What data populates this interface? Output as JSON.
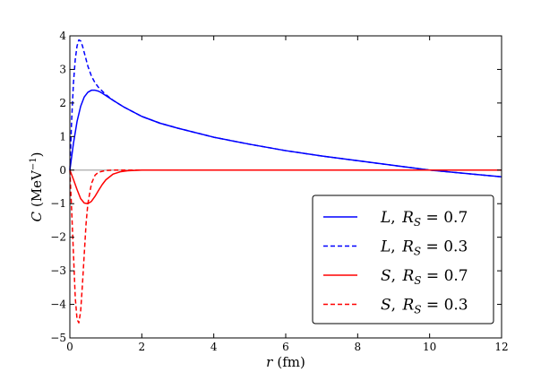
{
  "chart_data": {
    "type": "line",
    "title": "",
    "xlabel": {
      "var": "r",
      "unit": "(fm)"
    },
    "ylabel": {
      "var": "C",
      "unit": "(MeV",
      "exp": "−1",
      "close": ")"
    },
    "xlim": [
      0,
      12
    ],
    "ylim": [
      -5,
      4
    ],
    "xticks": [
      0,
      2,
      4,
      6,
      8,
      10,
      12
    ],
    "yticks": [
      -5,
      -4,
      -3,
      -2,
      -1,
      0,
      1,
      2,
      3,
      4
    ],
    "grid": false,
    "zero_line": true,
    "legend_position": "lower-right",
    "series": [
      {
        "legend": {
          "var": "L",
          "sep": ", ",
          "param": "R",
          "sub": "S",
          "eq": " = ",
          "val": "0.7"
        },
        "color": "#0000ff",
        "dash": "solid",
        "x": [
          0,
          0.1,
          0.2,
          0.3,
          0.4,
          0.5,
          0.6,
          0.7,
          0.8,
          0.9,
          1.0,
          1.2,
          1.5,
          2.0,
          2.5,
          3.0,
          4.0,
          5.0,
          6.0,
          7.0,
          8.0,
          9.0,
          10.0,
          11.0,
          12.0
        ],
        "y": [
          0,
          0.8,
          1.45,
          1.9,
          2.18,
          2.32,
          2.38,
          2.38,
          2.35,
          2.29,
          2.22,
          2.08,
          1.88,
          1.6,
          1.4,
          1.25,
          0.98,
          0.77,
          0.58,
          0.42,
          0.28,
          0.14,
          0.0,
          -0.1,
          -0.2
        ]
      },
      {
        "legend": {
          "var": "L",
          "sep": ", ",
          "param": "R",
          "sub": "S",
          "eq": " = ",
          "val": "0.3"
        },
        "color": "#0000ff",
        "dash": "dashed",
        "x": [
          0,
          0.05,
          0.1,
          0.15,
          0.2,
          0.25,
          0.3,
          0.35,
          0.4,
          0.5,
          0.6,
          0.7,
          0.8,
          1.0,
          1.2,
          1.5,
          2.0,
          2.5,
          3.0,
          4.0,
          5.0,
          6.0,
          7.0,
          8.0,
          9.0,
          10.0,
          11.0,
          12.0
        ],
        "y": [
          0,
          1.5,
          2.6,
          3.3,
          3.7,
          3.88,
          3.85,
          3.7,
          3.5,
          3.1,
          2.8,
          2.6,
          2.46,
          2.25,
          2.08,
          1.88,
          1.6,
          1.4,
          1.25,
          0.98,
          0.77,
          0.58,
          0.42,
          0.28,
          0.14,
          0.0,
          -0.1,
          -0.2
        ]
      },
      {
        "legend": {
          "var": "S",
          "sep": ", ",
          "param": "R",
          "sub": "S",
          "eq": " = ",
          "val": "0.7"
        },
        "color": "#ff0000",
        "dash": "solid",
        "x": [
          0,
          0.1,
          0.2,
          0.3,
          0.4,
          0.5,
          0.6,
          0.7,
          0.8,
          0.9,
          1.0,
          1.2,
          1.4,
          1.6,
          1.8,
          2.0,
          4.0,
          6.0,
          8.0,
          10.0,
          12.0
        ],
        "y": [
          0,
          -0.28,
          -0.58,
          -0.85,
          -0.98,
          -1.0,
          -0.93,
          -0.78,
          -0.6,
          -0.43,
          -0.29,
          -0.12,
          -0.05,
          -0.02,
          -0.01,
          0,
          0,
          0,
          0,
          0,
          0
        ]
      },
      {
        "legend": {
          "var": "S",
          "sep": ", ",
          "param": "R",
          "sub": "S",
          "eq": " = ",
          "val": "0.3"
        },
        "color": "#ff0000",
        "dash": "dashed",
        "x": [
          0,
          0.05,
          0.1,
          0.15,
          0.2,
          0.25,
          0.3,
          0.35,
          0.4,
          0.45,
          0.5,
          0.6,
          0.7,
          0.8,
          1.0,
          1.2,
          2.0,
          4.0,
          6.0,
          8.0,
          10.0,
          12.0
        ],
        "y": [
          0,
          -1.2,
          -2.5,
          -3.8,
          -4.45,
          -4.55,
          -4.2,
          -3.4,
          -2.5,
          -1.6,
          -1.0,
          -0.4,
          -0.15,
          -0.06,
          -0.01,
          0,
          0,
          0,
          0,
          0,
          0,
          0
        ]
      }
    ]
  }
}
